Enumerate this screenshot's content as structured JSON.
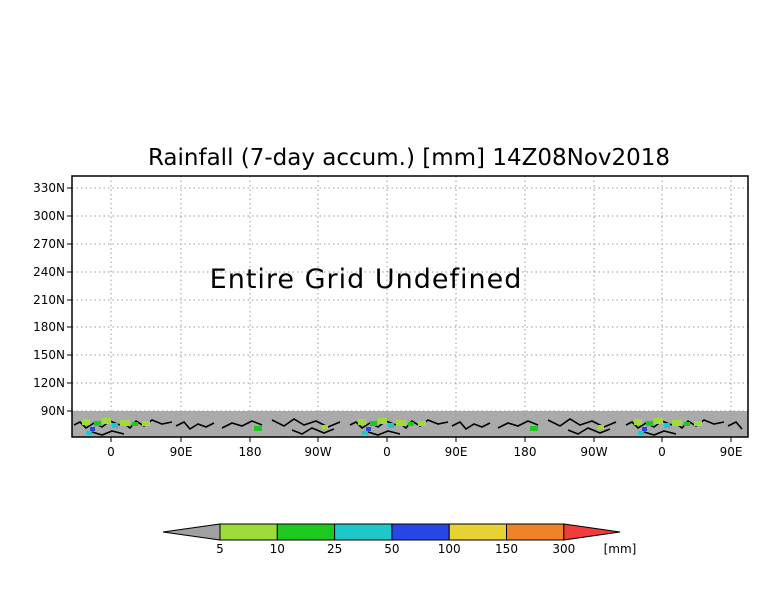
{
  "chart_data": {
    "type": "heatmap",
    "title": "Rainfall (7-day accum.) [mm] 14Z08Nov2018",
    "message": "Entire Grid Undefined",
    "x_ticks": [
      "0",
      "90E",
      "180",
      "90W",
      "0",
      "90E",
      "180",
      "90W",
      "0",
      "90E"
    ],
    "y_ticks": [
      "90N",
      "120N",
      "150N",
      "180N",
      "210N",
      "240N",
      "270N",
      "300N",
      "330N"
    ],
    "grid": true,
    "colorbar": {
      "labels": [
        "5",
        "10",
        "25",
        "50",
        "100",
        "150",
        "300"
      ],
      "unit": "[mm]",
      "colors": [
        "#a0a0a0",
        "#9edc3c",
        "#1ec81e",
        "#1ec8c8",
        "#2846e6",
        "#e6d232",
        "#f08228",
        "#f03c3c"
      ]
    },
    "colors": {
      "land_band": "#aaaaaa",
      "coast": "#000000"
    }
  }
}
